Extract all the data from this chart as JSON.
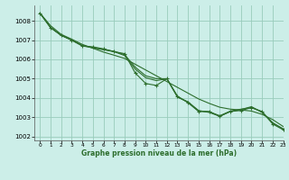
{
  "xlabel": "Graphe pression niveau de la mer (hPa)",
  "xlim": [
    -0.5,
    23
  ],
  "ylim": [
    1001.8,
    1008.8
  ],
  "yticks": [
    1002,
    1003,
    1004,
    1005,
    1006,
    1007,
    1008
  ],
  "xticks": [
    0,
    1,
    2,
    3,
    4,
    5,
    6,
    7,
    8,
    9,
    10,
    11,
    12,
    13,
    14,
    15,
    16,
    17,
    18,
    19,
    20,
    21,
    22,
    23
  ],
  "background_color": "#cceee8",
  "grid_color": "#99ccbb",
  "line_color": "#2d6e2d",
  "series": {
    "main": [
      1008.4,
      1007.65,
      1007.25,
      1007.0,
      1006.7,
      1006.65,
      1006.55,
      1006.4,
      1006.3,
      1005.3,
      1004.75,
      1004.65,
      1005.0,
      1004.1,
      1003.75,
      1003.3,
      1003.3,
      1003.05,
      1003.3,
      1003.35,
      1003.5,
      1003.3,
      1002.65,
      1002.35
    ],
    "line2": [
      1008.4,
      1007.65,
      1007.25,
      1007.0,
      1006.7,
      1006.6,
      1006.5,
      1006.4,
      1006.2,
      1005.5,
      1005.05,
      1004.9,
      1005.0,
      1004.05,
      1003.8,
      1003.35,
      1003.25,
      1003.05,
      1003.3,
      1003.4,
      1003.55,
      1003.25,
      1002.7,
      1002.4
    ],
    "line3": [
      1008.4,
      1007.65,
      1007.25,
      1007.0,
      1006.72,
      1006.62,
      1006.52,
      1006.42,
      1006.25,
      1005.6,
      1005.15,
      1005.0,
      1005.0,
      1004.05,
      1003.78,
      1003.32,
      1003.28,
      1003.08,
      1003.32,
      1003.42,
      1003.5,
      1003.28,
      1002.72,
      1002.38
    ],
    "smooth": [
      1008.4,
      1007.75,
      1007.3,
      1007.05,
      1006.78,
      1006.58,
      1006.38,
      1006.22,
      1006.05,
      1005.75,
      1005.45,
      1005.15,
      1004.85,
      1004.55,
      1004.25,
      1003.95,
      1003.72,
      1003.52,
      1003.42,
      1003.38,
      1003.32,
      1003.15,
      1002.88,
      1002.52
    ]
  }
}
